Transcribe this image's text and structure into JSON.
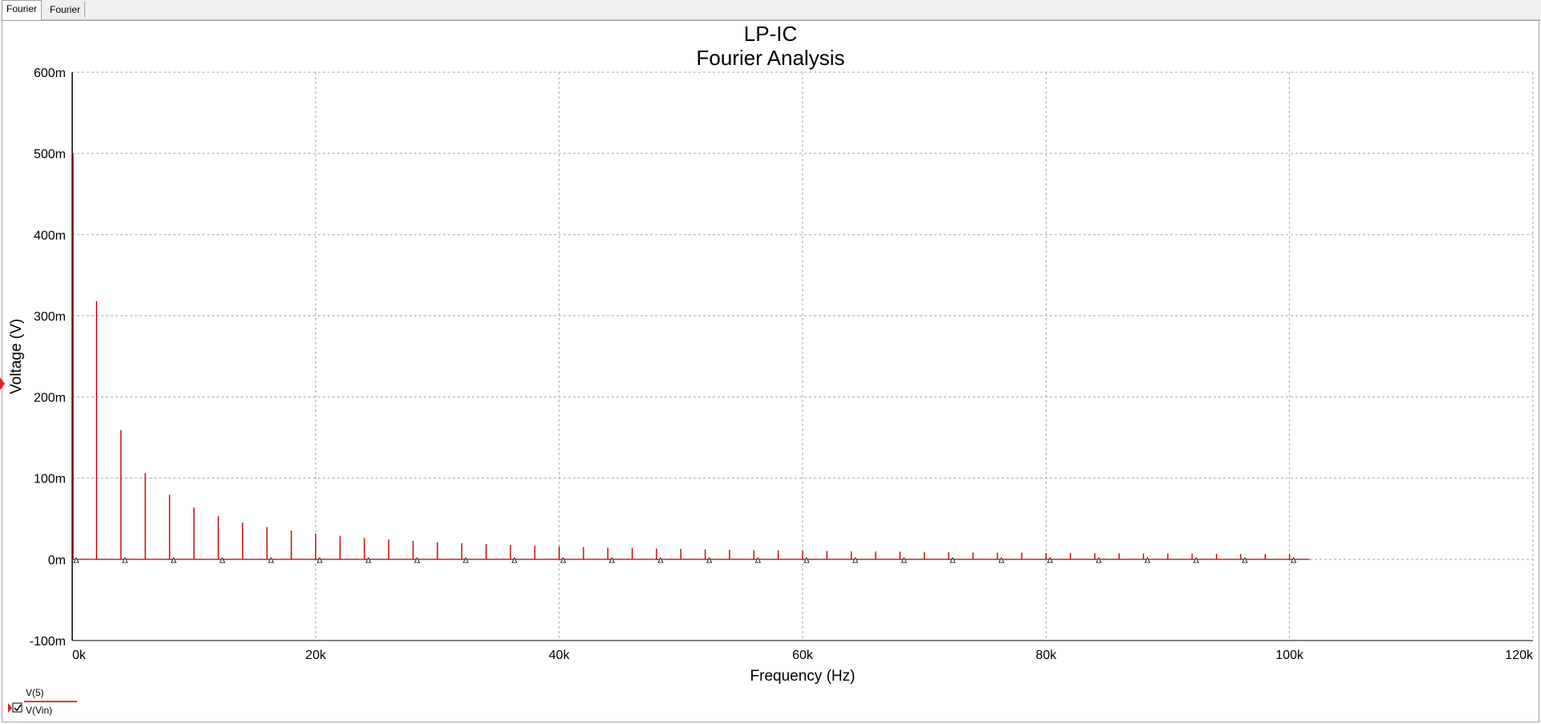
{
  "tabs": [
    {
      "label": "Fourier",
      "active": true
    },
    {
      "label": "Fourier",
      "active": false
    }
  ],
  "chart_data": {
    "type": "bar",
    "title": "LP-IC",
    "subtitle": "Fourier Analysis",
    "xlabel": "Frequency (Hz)",
    "ylabel": "Voltage (V)",
    "xlim": [
      0,
      120000
    ],
    "ylim": [
      -0.1,
      0.6
    ],
    "x_ticks": [
      0,
      20000,
      40000,
      60000,
      80000,
      100000,
      120000
    ],
    "x_tick_labels": [
      "0k",
      "20k",
      "40k",
      "60k",
      "80k",
      "100k",
      "120k"
    ],
    "y_ticks": [
      -0.1,
      0,
      0.1,
      0.2,
      0.3,
      0.4,
      0.5,
      0.6
    ],
    "y_tick_labels": [
      "-100m",
      "0m",
      "100m",
      "200m",
      "300m",
      "400m",
      "500m",
      "600m"
    ],
    "grid": true,
    "series": [
      {
        "name": "V(5)",
        "color": "#c00000",
        "x": [
          0,
          2000,
          4000,
          6000,
          8000,
          10000,
          12000,
          14000,
          16000,
          18000,
          20000,
          22000,
          24000,
          26000,
          28000,
          30000,
          32000,
          34000,
          36000,
          38000,
          40000,
          42000,
          44000,
          46000,
          48000,
          50000,
          52000,
          54000,
          56000,
          58000,
          60000,
          62000,
          64000,
          66000,
          68000,
          70000,
          72000,
          74000,
          76000,
          78000,
          80000,
          82000,
          84000,
          86000,
          88000,
          90000,
          92000,
          94000,
          96000,
          98000,
          100000
        ],
        "values": [
          0.5,
          0.318,
          0.159,
          0.106,
          0.0795,
          0.0637,
          0.053,
          0.0455,
          0.0398,
          0.0354,
          0.0318,
          0.029,
          0.0265,
          0.0245,
          0.0227,
          0.0212,
          0.0199,
          0.0187,
          0.0177,
          0.0168,
          0.0159,
          0.0152,
          0.0145,
          0.0138,
          0.0133,
          0.0127,
          0.0122,
          0.0118,
          0.0114,
          0.011,
          0.0106,
          0.0103,
          0.0099,
          0.0096,
          0.0094,
          0.0091,
          0.0088,
          0.0086,
          0.0084,
          0.0082,
          0.008,
          0.0078,
          0.0076,
          0.0074,
          0.0072,
          0.0071,
          0.0069,
          0.0068,
          0.0066,
          0.0065,
          0.0064
        ]
      },
      {
        "name": "V(Vin)",
        "color": "#000000",
        "x": [
          0,
          4000,
          8000,
          12000,
          16000,
          20000,
          24000,
          28000,
          32000,
          36000,
          40000,
          44000,
          48000,
          52000,
          56000,
          60000,
          64000,
          68000,
          72000,
          76000,
          80000,
          84000,
          88000,
          92000,
          96000,
          100000
        ],
        "values": [
          0,
          0,
          0,
          0,
          0,
          0,
          0,
          0,
          0,
          0,
          0,
          0,
          0,
          0,
          0,
          0,
          0,
          0,
          0,
          0,
          0,
          0,
          0,
          0,
          0,
          0
        ]
      }
    ]
  },
  "legend": [
    {
      "label": "V(5)",
      "checked": false
    },
    {
      "label": "V(Vin)",
      "checked": true
    }
  ]
}
